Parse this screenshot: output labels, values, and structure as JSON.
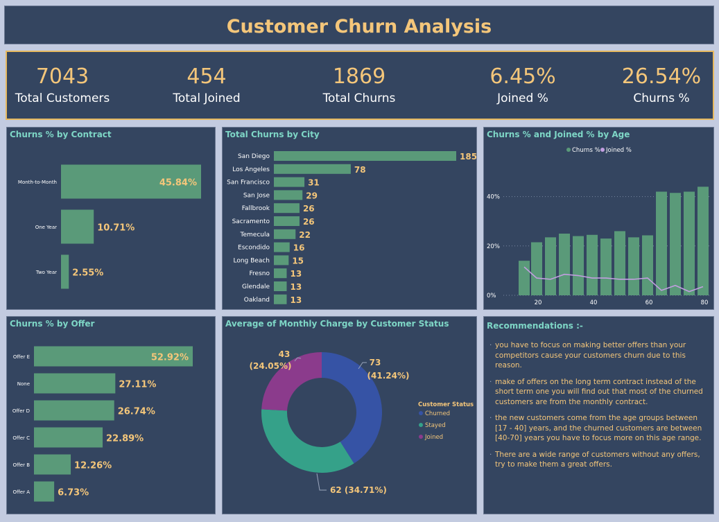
{
  "title": "Customer Churn Analysis",
  "kpis": [
    {
      "value": "7043",
      "label": "Total Customers"
    },
    {
      "value": "454",
      "label": "Total Joined"
    },
    {
      "value": "1869",
      "label": "Total Churns"
    },
    {
      "value": "6.45%",
      "label": "Joined %"
    },
    {
      "value": "26.54%",
      "label": "Churns %"
    }
  ],
  "colors": {
    "bar": "#5a9a79",
    "gold": "#f4c67a",
    "teal": "#7ed6c6",
    "panel": "#344560",
    "churned": "#3653a5",
    "stayed": "#35a189",
    "joined": "#8b3b8c",
    "line": "#c29ee0"
  },
  "contract": {
    "title": "Churns % by Contract",
    "chart_data": {
      "type": "bar",
      "orientation": "horizontal",
      "categories": [
        "Month-to-Month",
        "One Year",
        "Two Year"
      ],
      "values": [
        45.84,
        10.71,
        2.55
      ],
      "labels": [
        "45.84%",
        "10.71%",
        "2.55%"
      ]
    }
  },
  "city": {
    "title": "Total Churns by City",
    "chart_data": {
      "type": "bar",
      "orientation": "horizontal",
      "categories": [
        "San Diego",
        "Los Angeles",
        "San Francisco",
        "San Jose",
        "Fallbrook",
        "Sacramento",
        "Temecula",
        "Escondido",
        "Long Beach",
        "Fresno",
        "Glendale",
        "Oakland"
      ],
      "values": [
        185,
        78,
        31,
        29,
        26,
        26,
        22,
        16,
        15,
        13,
        13,
        13
      ]
    }
  },
  "age": {
    "title": "Churns % and Joined % by Age",
    "chart_data": {
      "type": "bar",
      "x": [
        20,
        25,
        30,
        35,
        40,
        45,
        50,
        55,
        60,
        65,
        70,
        75,
        80
      ],
      "series": [
        {
          "name": "Churns %",
          "type": "bar",
          "values": [
            14,
            21.5,
            23.5,
            25,
            24,
            24.5,
            23,
            26,
            23.5,
            24.3,
            42,
            41.5,
            42,
            44
          ]
        },
        {
          "name": "Joined %",
          "type": "line",
          "values": [
            11.5,
            7,
            6.5,
            8.5,
            8,
            7,
            7,
            6.5,
            6.5,
            7,
            2,
            4,
            1.5,
            3.5
          ]
        }
      ],
      "x_values": [
        15,
        19.5,
        24.5,
        29.5,
        34.5,
        39.5,
        44.5,
        49.5,
        54.5,
        59.5,
        64.5,
        69.5,
        74.5,
        79.5
      ],
      "xticks": [
        "20",
        "40",
        "60",
        "80"
      ],
      "yticks": [
        "0%",
        "20%",
        "40%"
      ],
      "ylim": [
        0,
        50
      ],
      "legend": "top"
    }
  },
  "offer": {
    "title": "Churns % by Offer",
    "chart_data": {
      "type": "bar",
      "orientation": "horizontal",
      "categories": [
        "Offer E",
        "None",
        "Offer D",
        "Offer C",
        "Offer B",
        "Offer A"
      ],
      "values": [
        52.92,
        27.11,
        26.74,
        22.89,
        12.26,
        6.73
      ],
      "labels": [
        "52.92%",
        "27.11%",
        "26.74%",
        "22.89%",
        "12.26%",
        "6.73%"
      ]
    }
  },
  "donut": {
    "title": "Average of Monthly Charge by Customer Status",
    "legend_title": "Customer Status",
    "chart_data": {
      "type": "pie",
      "categories": [
        "Churned",
        "Stayed",
        "Joined"
      ],
      "values": [
        73,
        62,
        43
      ],
      "labels": [
        "73\n(41.24%)",
        "62 (34.71%)",
        "43\n(24.05%)"
      ]
    }
  },
  "recommendations": {
    "title": "Recommendations :-",
    "items": [
      "you have to  focus on making better offers than your competitors cause your customers churn due to this reason.",
      "make of offers on the long term contract instead of the short term one you will find out that most of the churned customers are from the monthly contract.",
      "the new customers come from the age groups between [17 - 40] years, and the churned customers are between [40-70] years you have to focus more on this age range.",
      "There are a wide range of customers without any offers, try to make them a great offers."
    ]
  }
}
